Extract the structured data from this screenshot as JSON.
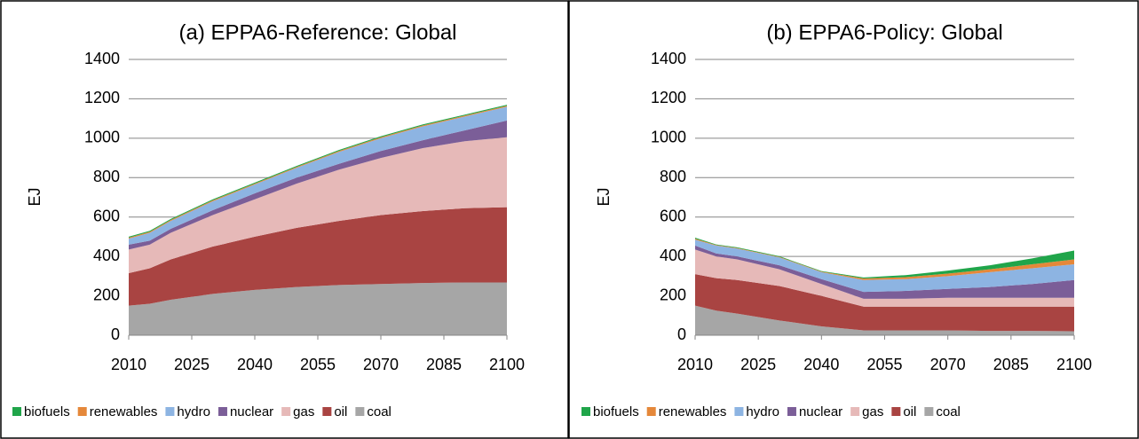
{
  "chart_data": [
    {
      "type": "area",
      "title": "(a) EPPA6-Reference: Global",
      "y_label": "EJ",
      "x": [
        2010,
        2015,
        2020,
        2030,
        2040,
        2050,
        2060,
        2070,
        2080,
        2090,
        2100
      ],
      "xlim": [
        2010,
        2100
      ],
      "xticks": [
        2010,
        2025,
        2040,
        2055,
        2070,
        2085,
        2100
      ],
      "ylim": [
        0,
        1400
      ],
      "yticks": [
        0,
        200,
        400,
        600,
        800,
        1000,
        1200,
        1400
      ],
      "grid": true,
      "stacked": true,
      "legend": "bottom",
      "series": [
        {
          "name": "biofuels",
          "color": "#20a54a",
          "values": [
            5,
            5,
            5,
            5,
            5,
            5,
            5,
            5,
            5,
            5,
            5
          ]
        },
        {
          "name": "renewables",
          "color": "#e5883a",
          "values": [
            5,
            5,
            5,
            5,
            5,
            5,
            5,
            5,
            5,
            5,
            5
          ]
        },
        {
          "name": "hydro",
          "color": "#8db4e2",
          "values": [
            30,
            40,
            40,
            45,
            45,
            50,
            60,
            65,
            70,
            70,
            70
          ]
        },
        {
          "name": "nuclear",
          "color": "#7b5e98",
          "values": [
            25,
            20,
            20,
            25,
            30,
            30,
            30,
            35,
            40,
            55,
            85
          ]
        },
        {
          "name": "gas",
          "color": "#e6b9b8",
          "values": [
            120,
            120,
            135,
            160,
            190,
            225,
            260,
            290,
            320,
            340,
            355
          ]
        },
        {
          "name": "oil",
          "color": "#a94442",
          "values": [
            165,
            180,
            205,
            240,
            270,
            300,
            325,
            350,
            365,
            377,
            382
          ]
        },
        {
          "name": "coal",
          "color": "#a6a6a6",
          "values": [
            150,
            160,
            180,
            210,
            230,
            245,
            255,
            260,
            265,
            268,
            268
          ]
        }
      ]
    },
    {
      "type": "area",
      "title": "(b) EPPA6-Policy: Global",
      "y_label": "EJ",
      "x": [
        2010,
        2015,
        2020,
        2030,
        2040,
        2050,
        2060,
        2070,
        2080,
        2090,
        2100
      ],
      "xlim": [
        2010,
        2100
      ],
      "xticks": [
        2010,
        2025,
        2040,
        2055,
        2070,
        2085,
        2100
      ],
      "ylim": [
        0,
        1400
      ],
      "yticks": [
        0,
        200,
        400,
        600,
        800,
        1000,
        1200,
        1400
      ],
      "grid": true,
      "stacked": true,
      "legend": "bottom",
      "series": [
        {
          "name": "biofuels",
          "color": "#20a54a",
          "values": [
            5,
            3,
            3,
            3,
            3,
            5,
            10,
            15,
            20,
            30,
            45
          ]
        },
        {
          "name": "renewables",
          "color": "#e5883a",
          "values": [
            5,
            3,
            3,
            3,
            3,
            8,
            10,
            13,
            15,
            20,
            25
          ]
        },
        {
          "name": "hydro",
          "color": "#8db4e2",
          "values": [
            30,
            40,
            40,
            40,
            35,
            60,
            60,
            65,
            75,
            80,
            80
          ]
        },
        {
          "name": "nuclear",
          "color": "#7b5e98",
          "values": [
            20,
            15,
            15,
            20,
            25,
            35,
            40,
            45,
            55,
            70,
            90
          ]
        },
        {
          "name": "gas",
          "color": "#e6b9b8",
          "values": [
            125,
            110,
            105,
            85,
            60,
            40,
            40,
            45,
            45,
            45,
            45
          ]
        },
        {
          "name": "oil",
          "color": "#a94442",
          "values": [
            160,
            165,
            170,
            175,
            155,
            120,
            120,
            120,
            123,
            123,
            125
          ]
        },
        {
          "name": "coal",
          "color": "#a6a6a6",
          "values": [
            150,
            125,
            110,
            75,
            45,
            25,
            25,
            25,
            22,
            22,
            20
          ]
        }
      ]
    }
  ]
}
